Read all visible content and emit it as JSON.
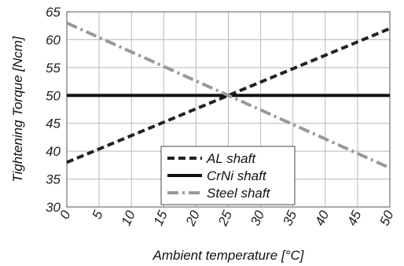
{
  "chart_data": {
    "type": "line",
    "title": "",
    "xlabel": "Ambient temperature [°C]",
    "ylabel": "Tightening Torque [Ncm]",
    "xlim": [
      0,
      50
    ],
    "ylim": [
      30,
      65
    ],
    "xticks": [
      0,
      5,
      10,
      15,
      20,
      25,
      30,
      35,
      40,
      45,
      50
    ],
    "yticks": [
      30,
      35,
      40,
      45,
      50,
      55,
      60,
      65
    ],
    "grid": true,
    "legend_position": "bottom-center",
    "series": [
      {
        "name": "AL shaft",
        "color": "#222222",
        "dash": "dashed",
        "x": [
          0,
          50
        ],
        "y": [
          38,
          62
        ]
      },
      {
        "name": "CrNi shaft",
        "color": "#111111",
        "dash": "solid",
        "x": [
          0,
          50
        ],
        "y": [
          50,
          50
        ]
      },
      {
        "name": "Steel shaft",
        "color": "#999999",
        "dash": "dash-dot",
        "x": [
          0,
          50
        ],
        "y": [
          63,
          37
        ]
      }
    ]
  }
}
